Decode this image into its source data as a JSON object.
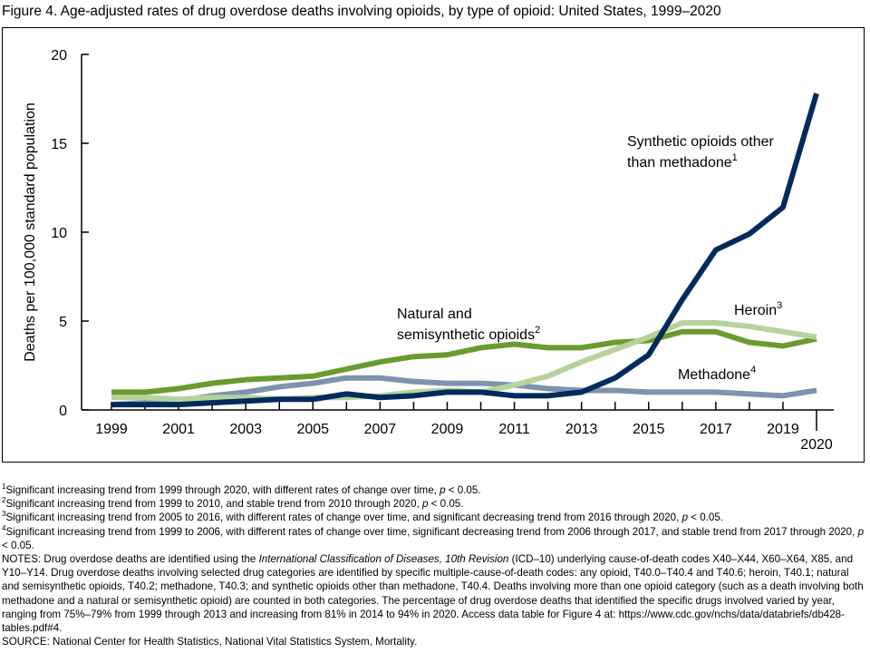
{
  "title": "Figure 4. Age-adjusted rates of drug overdose deaths involving opioids, by type of opioid: United States, 1999–2020",
  "chart_data": {
    "type": "line",
    "title": "Figure 4. Age-adjusted rates of drug overdose deaths involving opioids, by type of opioid: United States, 1999–2020",
    "xlabel": "",
    "ylabel": "Deaths per 100,000 standard population",
    "ylim": [
      0,
      20
    ],
    "yticks": [
      "0",
      "5",
      "10",
      "15",
      "20"
    ],
    "xticks": [
      "1999",
      "2001",
      "2003",
      "2005",
      "2007",
      "2009",
      "2011",
      "2013",
      "2015",
      "2017",
      "2019",
      "2020"
    ],
    "x": [
      1999,
      2000,
      2001,
      2002,
      2003,
      2004,
      2005,
      2006,
      2007,
      2008,
      2009,
      2010,
      2011,
      2012,
      2013,
      2014,
      2015,
      2016,
      2017,
      2018,
      2019,
      2020
    ],
    "series": [
      {
        "name": "Natural and semisynthetic opioids",
        "label_line1": "Natural and",
        "label_line2": "semisynthetic opioids",
        "sup": "2",
        "color": "#6a9b2f",
        "values": [
          1.0,
          1.0,
          1.2,
          1.5,
          1.7,
          1.8,
          1.9,
          2.3,
          2.7,
          3.0,
          3.1,
          3.5,
          3.7,
          3.5,
          3.5,
          3.8,
          3.9,
          4.4,
          4.4,
          3.8,
          3.6,
          4.0
        ]
      },
      {
        "name": "Methadone",
        "label_line1": "Methadone",
        "sup": "4",
        "color": "#7f93ae",
        "values": [
          0.3,
          0.4,
          0.5,
          0.8,
          1.0,
          1.3,
          1.5,
          1.8,
          1.8,
          1.6,
          1.5,
          1.5,
          1.4,
          1.2,
          1.1,
          1.1,
          1.0,
          1.0,
          1.0,
          0.9,
          0.8,
          1.1
        ]
      },
      {
        "name": "Heroin",
        "label_line1": "Heroin",
        "sup": "3",
        "color": "#b5d39b",
        "values": [
          0.7,
          0.7,
          0.6,
          0.7,
          0.7,
          0.6,
          0.7,
          0.7,
          0.8,
          1.0,
          1.1,
          1.0,
          1.4,
          1.9,
          2.7,
          3.4,
          4.1,
          4.9,
          4.9,
          4.7,
          4.4,
          4.1
        ]
      },
      {
        "name": "Synthetic opioids other than methadone",
        "label_line1": "Synthetic opioids other",
        "label_line2": "than methadone",
        "sup": "1",
        "color": "#002b5c",
        "values": [
          0.3,
          0.3,
          0.3,
          0.4,
          0.5,
          0.6,
          0.6,
          0.9,
          0.7,
          0.8,
          1.0,
          1.0,
          0.8,
          0.8,
          1.0,
          1.8,
          3.1,
          6.2,
          9.0,
          9.9,
          11.4,
          17.8
        ]
      }
    ]
  },
  "footnotes": [
    {
      "sup": "1",
      "text": "Significant increasing trend from 1999 through 2020, with different rates of change over time, ",
      "p": "p",
      "tail": " < 0.05."
    },
    {
      "sup": "2",
      "text": "Significant increasing trend from 1999 to 2010, and stable trend from 2010 through 2020, ",
      "p": "p",
      "tail": " < 0.05."
    },
    {
      "sup": "3",
      "text": "Significant increasing trend from 2005 to 2016, with different rates of change over time, and significant decreasing trend from 2016 through 2020, ",
      "p": "p",
      "tail": " < 0.05."
    },
    {
      "sup": "4",
      "text": "Significant increasing trend from 1999 to 2006, with different rates of change over time, significant decreasing trend from 2006 through 2017, and stable trend from 2017 through 2020, ",
      "p": "p",
      "tail": " < 0.05."
    }
  ],
  "notes": {
    "prefix": "NOTES: Drug overdose deaths are identified using the ",
    "italic": "International Classification of Diseases, 10th Revision",
    "body": " (ICD–10) underlying cause-of-death codes X40–X44, X60–X64, X85, and Y10–Y14. Drug overdose deaths involving selected drug categories are identified by specific multiple-cause-of-death codes: any opioid, T40.0–T40.4 and T40.6; heroin, T40.1; natural and semisynthetic opioids, T40.2; methadone, T40.3; and synthetic opioids other than methadone, T40.4. Deaths involving more than one opioid category (such as a death involving both methadone and a natural or semisynthetic opioid) are counted in both categories. The percentage of drug overdose deaths that identified the specific drugs involved varied by year, ranging from 75%–79% from 1999 through 2013 and increasing from 81% in 2014 to 94% in 2020. Access data table for Figure 4 at: https://www.cdc.gov/nchs/data/databriefs/db428-tables.pdf#4."
  },
  "source": "SOURCE: National Center for Health Statistics, National Vital Statistics System, Mortality."
}
